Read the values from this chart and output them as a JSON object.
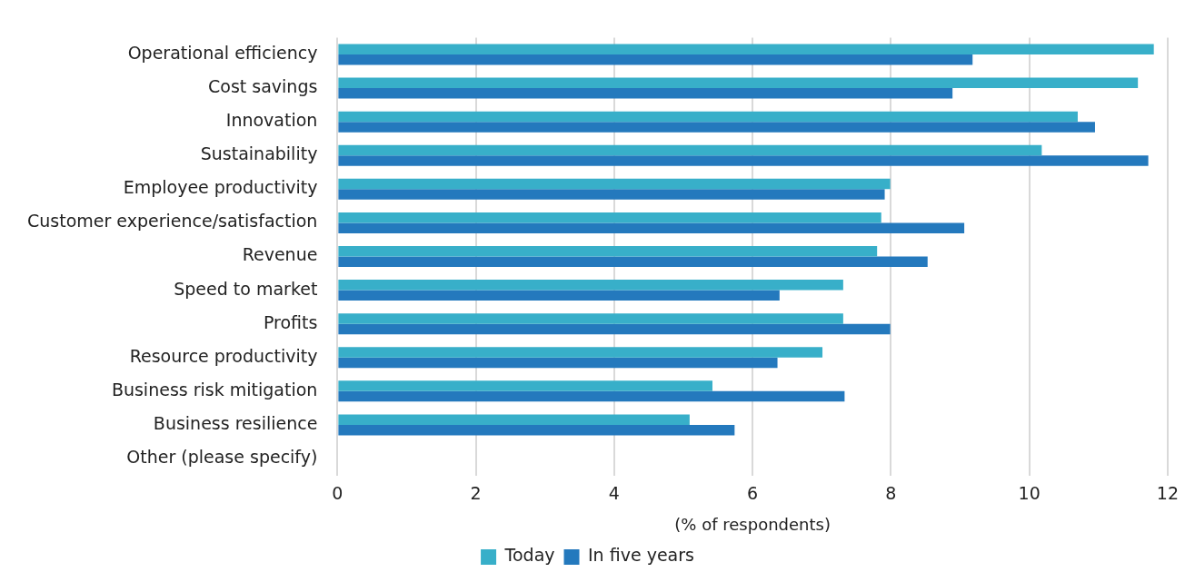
{
  "chart_data": {
    "type": "bar",
    "orientation": "horizontal",
    "xlabel": "(% of respondents)",
    "categories": [
      "Operational efficiency",
      "Cost savings",
      "Innovation",
      "Sustainability",
      "Employee productivity",
      "Customer experience/satisfaction",
      "Revenue",
      "Speed to market",
      "Profits",
      "Resource productivity",
      "Business risk mitigation",
      "Business resilience",
      "Other (please specify)"
    ],
    "series": [
      {
        "name": "Today",
        "color": "#38afc9",
        "values": [
          11.8,
          11.57,
          10.7,
          10.18,
          7.99,
          7.86,
          7.8,
          7.31,
          7.31,
          7.01,
          5.42,
          5.09,
          null
        ]
      },
      {
        "name": "In five years",
        "color": "#2479bd",
        "values": [
          9.18,
          8.89,
          10.95,
          11.72,
          7.91,
          9.06,
          8.53,
          6.39,
          7.99,
          6.36,
          7.33,
          5.74,
          null
        ]
      }
    ],
    "xlim": [
      0,
      12
    ],
    "xticks": [
      0,
      2,
      4,
      6,
      8,
      10,
      12
    ],
    "grid": "x",
    "legend": "bottom"
  }
}
